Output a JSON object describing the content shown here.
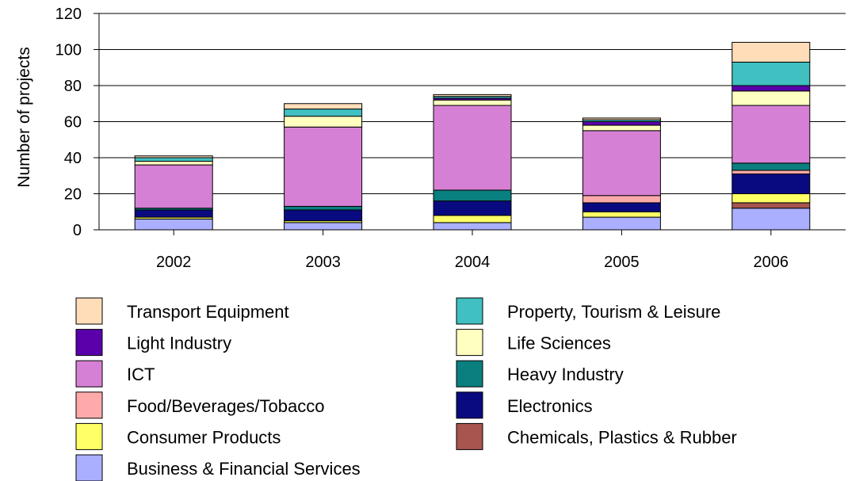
{
  "chart_data": {
    "type": "bar",
    "stacked": true,
    "categories": [
      "2002",
      "2003",
      "2004",
      "2005",
      "2006"
    ],
    "ylabel": "Number of projects",
    "xlabel": "",
    "ylim": [
      0,
      120
    ],
    "yticks": [
      0,
      20,
      40,
      60,
      80,
      100,
      120
    ],
    "grid": "horizontal",
    "legend_position": "bottom",
    "series": [
      {
        "name": "Business & Financial Services",
        "color": "#AAB0FF",
        "values": [
          6,
          4,
          4,
          7,
          12
        ]
      },
      {
        "name": "Chemicals, Plastics & Rubber",
        "color": "#A8554F",
        "values": [
          0,
          0,
          0,
          0,
          3
        ]
      },
      {
        "name": "Consumer Products",
        "color": "#FFFF66",
        "values": [
          1,
          1,
          4,
          3,
          5
        ]
      },
      {
        "name": "Electronics",
        "color": "#0A0A80",
        "values": [
          4,
          6,
          8,
          5,
          11
        ]
      },
      {
        "name": "Food/Beverages/Tobacco",
        "color": "#FFAAAA",
        "values": [
          0,
          0,
          0,
          4,
          2
        ]
      },
      {
        "name": "Heavy Industry",
        "color": "#0A7F7F",
        "values": [
          1,
          2,
          6,
          0,
          4
        ]
      },
      {
        "name": "ICT",
        "color": "#D580D5",
        "values": [
          24,
          44,
          47,
          36,
          32
        ]
      },
      {
        "name": "Life Sciences",
        "color": "#FFFFC0",
        "values": [
          2,
          6,
          3,
          3,
          8
        ]
      },
      {
        "name": "Light Industry",
        "color": "#5A00AA",
        "values": [
          0,
          0,
          1,
          2,
          3
        ]
      },
      {
        "name": "Property, Tourism & Leisure",
        "color": "#40C0C0",
        "values": [
          2,
          4,
          1,
          1,
          13
        ]
      },
      {
        "name": "Transport Equipment",
        "color": "#FFDDB8",
        "values": [
          1,
          3,
          1,
          1,
          11
        ]
      }
    ],
    "legend_order": [
      "Transport Equipment",
      "Property, Tourism & Leisure",
      "Light Industry",
      "Life Sciences",
      "ICT",
      "Heavy Industry",
      "Food/Beverages/Tobacco",
      "Electronics",
      "Consumer Products",
      "Chemicals, Plastics & Rubber",
      "Business & Financial Services"
    ]
  }
}
